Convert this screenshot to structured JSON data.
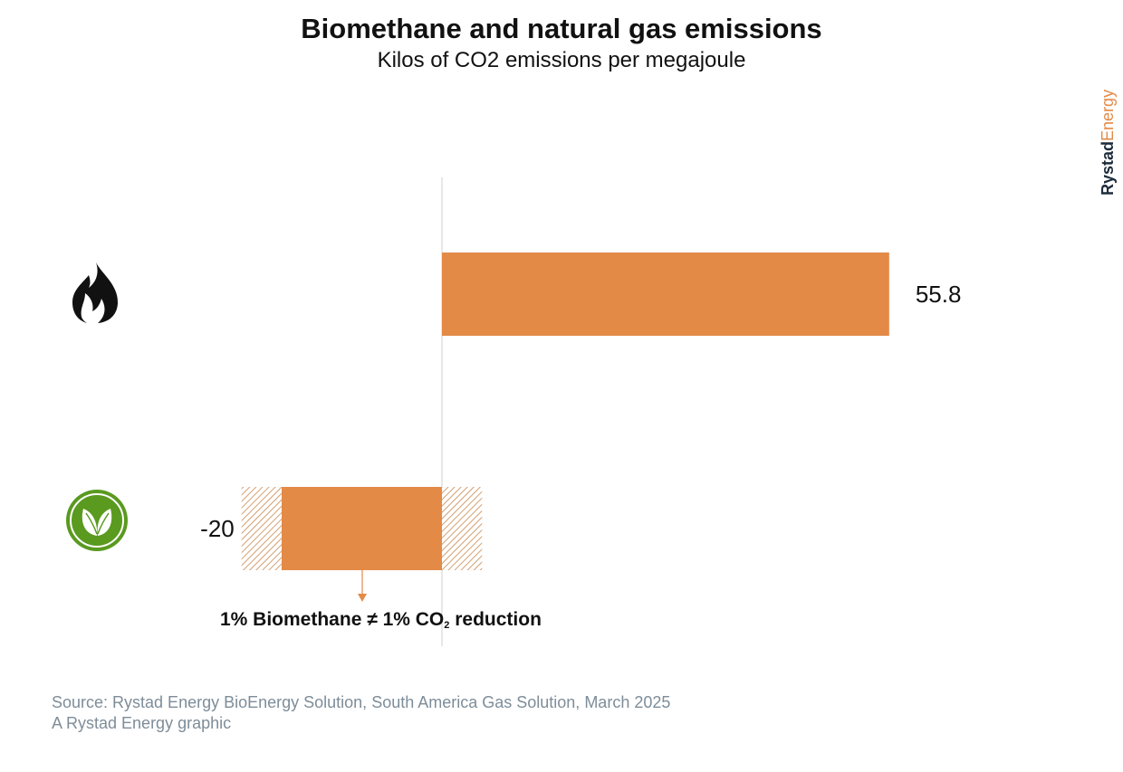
{
  "title": "Biomethane and natural gas emissions",
  "subtitle": "Kilos of CO2 emissions per megajoule",
  "brand": {
    "part1": "Rystad",
    "part2": "Energy",
    "color1": "#1d2b3a",
    "color2": "#e38a47"
  },
  "chart_data": {
    "type": "bar",
    "orientation": "horizontal",
    "categories": [
      "natural-gas",
      "biomethane"
    ],
    "category_icons": [
      "flame-icon",
      "leaf-circle-icon"
    ],
    "values": [
      55.8,
      -20
    ],
    "value_labels": [
      "55.8",
      "-20"
    ],
    "bar_color": "#e38a47",
    "uncertainty_range": {
      "category": "biomethane",
      "low": -25,
      "high": 5,
      "style": "hatched"
    },
    "zero_line": true,
    "grid": false,
    "title": "Biomethane and natural gas emissions",
    "subtitle": "Kilos of CO2 emissions per megajoule"
  },
  "annotation": {
    "main": "1% Biomethane ≠ 1% CO",
    "sub": "2",
    "tail": " reduction"
  },
  "source": {
    "line1": "Source: Rystad Energy BioEnergy Solution, South America Gas Solution, March 2025",
    "line2": "A Rystad Energy graphic"
  },
  "colors": {
    "accent": "#e38a47",
    "icon_green": "#5a9a1f",
    "text_gray": "#7e8d99"
  }
}
